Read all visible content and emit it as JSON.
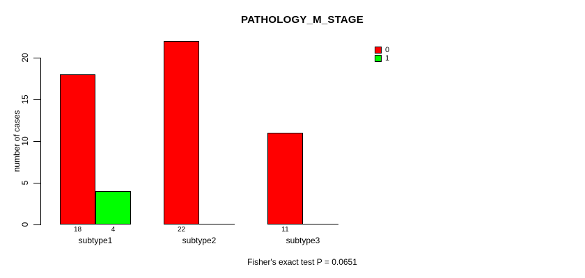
{
  "chart_data": {
    "type": "bar",
    "title": "PATHOLOGY_M_STAGE",
    "ylabel": "number of cases",
    "xlabel": "",
    "categories": [
      "subtype1",
      "subtype2",
      "subtype3"
    ],
    "series": [
      {
        "name": "0",
        "color": "#ff0000",
        "values": [
          18,
          22,
          11
        ]
      },
      {
        "name": "1",
        "color": "#00ff00",
        "values": [
          4,
          0,
          0
        ]
      }
    ],
    "yticks": [
      0,
      5,
      10,
      15,
      20
    ],
    "ylim": [
      0,
      22
    ],
    "grid": false,
    "legend_position": "top-right",
    "legend_entries": [
      {
        "label": "0",
        "color": "#ff0000"
      },
      {
        "label": "1",
        "color": "#00ff00"
      }
    ],
    "annotation": "Fisher's exact test P = 0.0651",
    "colors": {
      "background": "#ffffff",
      "axis": "#000000",
      "bar_border": "#000000",
      "text": "#000000"
    }
  }
}
